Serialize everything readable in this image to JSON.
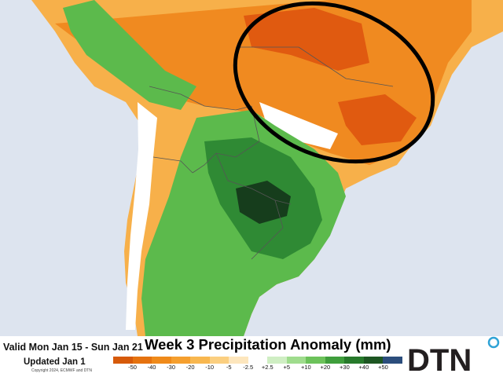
{
  "map": {
    "title": "Week 3 Precipitation Anomaly (mm)",
    "valid": "Valid Mon Jan 15 - Sun Jan 21",
    "updated": "Updated Jan 1",
    "copyright": "Copyright 2024, ECMWF and DTN",
    "brand": "DTN",
    "legend": {
      "ticks": [
        "-50",
        "-40",
        "-30",
        "-20",
        "-10",
        "-5",
        "-2.5",
        "+2.5",
        "+5",
        "+10",
        "+20",
        "+30",
        "+40",
        "+50"
      ],
      "colors": [
        "#d65a0a",
        "#e5720f",
        "#ef8a1a",
        "#f59f2e",
        "#f8b74f",
        "#fbcf80",
        "#fde6bd",
        "#ffffff",
        "#cfeec3",
        "#9fdc8d",
        "#6cc25a",
        "#3f9e3c",
        "#277a2b",
        "#1d5622",
        "#2b4d7c"
      ]
    },
    "colors": {
      "ocean": "#dde4ef",
      "dry_strong": "#e05a10",
      "dry": "#f08a20",
      "dry_light": "#f7b04a",
      "wet": "#5cba4c",
      "wet_strong": "#2f8a34",
      "wet_darkest": "#163d1c",
      "neutral": "#ffffff",
      "highlight_ellipse": "#000000",
      "brand_circle": "#2fa3d6"
    }
  }
}
